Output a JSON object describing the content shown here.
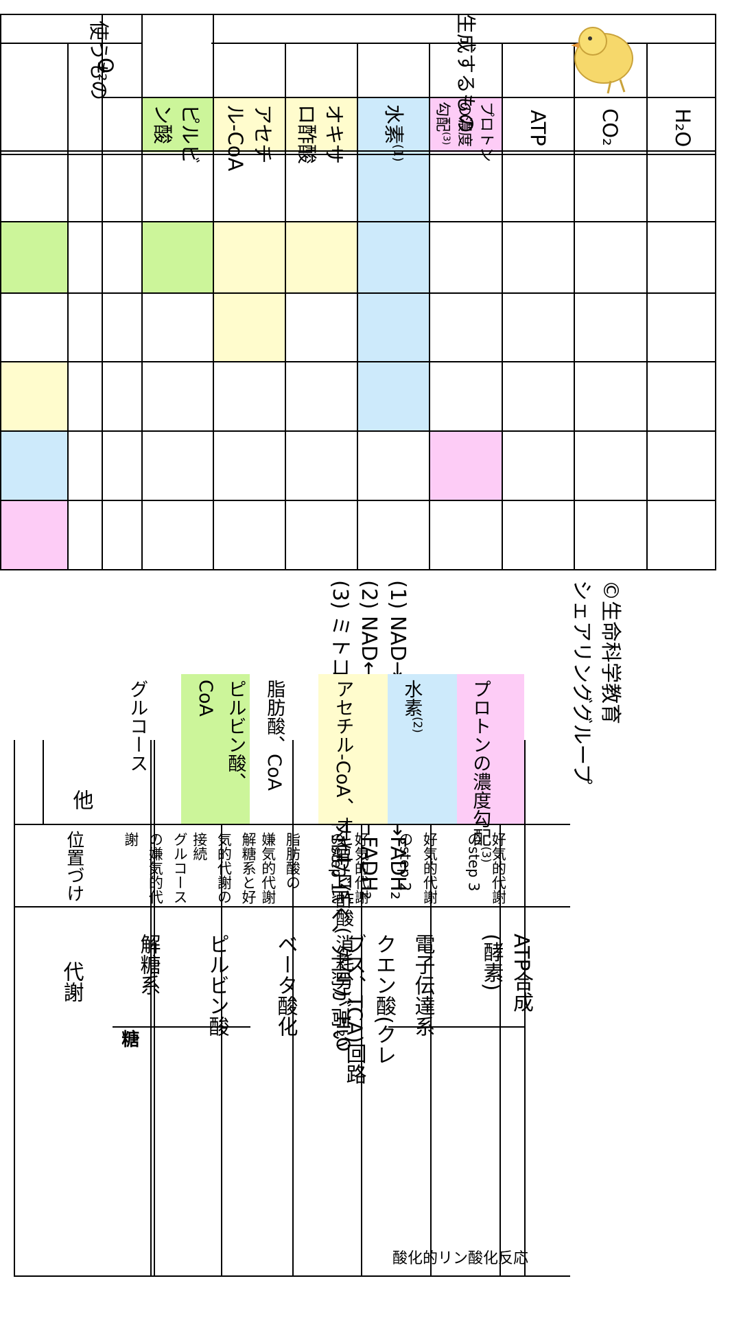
{
  "colors": {
    "green": "#ccf59a",
    "yellow": "#fffccd",
    "blue": "#cdeafb",
    "pink": "#fdccf6"
  },
  "headers": {
    "metabolism": "代謝",
    "positioning": "位置づけ",
    "uses": "使うもの",
    "other": "他",
    "o2": "O₂",
    "produces": "生成するもの",
    "pyruvate": [
      "ピルビ",
      "ン酸"
    ],
    "acetyl_coa": [
      "アセチ",
      "ル-CoA"
    ],
    "oxaloacetate": [
      "オキサ",
      "ロ酢酸"
    ],
    "hydrogen": "水素",
    "hydrogen_mark": "(1)",
    "proton": [
      "プロトン",
      "の濃度",
      "勾配"
    ],
    "proton_mark": "(3)",
    "atp": "ATP",
    "co2": "CO₂",
    "h2o": "H₂O"
  },
  "groups": {
    "sugar": "糖",
    "oxphos": "酸化的リン酸化反応"
  },
  "rows": [
    {
      "name": "解糖系",
      "position": [
        "グルコース",
        "の嫌気的代",
        "謝"
      ],
      "other": [
        "グルコース"
      ]
    },
    {
      "name": "ピルビン酸",
      "position": [
        "解糖系と好",
        "気的代謝の",
        "接続"
      ],
      "other": [
        "ピルビン酸、",
        "CoA"
      ]
    },
    {
      "name": "ベータ酸化",
      "position": [
        "脂肪酸の",
        "嫌気的代謝"
      ],
      "other": [
        "脂肪酸、CoA"
      ]
    },
    {
      "name_lines": [
        "クエン酸(クレ",
        "ブス、TCA)回路"
      ],
      "position": [
        "好気的代謝",
        "のstep 1"
      ],
      "other_lines": [
        "アセチル-CoA、",
        "オキサロ酢酸",
        "(消耗分)",
        "、",
        "H₂O"
      ]
    },
    {
      "name": "電子伝達系",
      "position": [
        "好気的代謝",
        "のstep 2"
      ],
      "other": [
        "水素"
      ],
      "other_mark": "(2)"
    },
    {
      "name_lines": [
        "ATP合成",
        "(酵素)"
      ],
      "position": [
        "好気的代謝",
        "のstep 3"
      ],
      "other_lines": [
        "プロトンの",
        "濃度勾配"
      ],
      "other_mark": "(3)"
    }
  ],
  "notes": [
    {
      "num": "(1)",
      "text": "NAD→NADH₂⁺、FAD→FADH₂"
    },
    {
      "num": "(2)",
      "text": "NAD←NADH₂⁺、FAD←FADH₂"
    },
    {
      "num": "(3)",
      "text": "ミトコンドリア内膜の内側が低く、外側が高い"
    }
  ],
  "copyright": [
    "©生命科学教育",
    "シェアリンググループ"
  ],
  "mascot_icon": "chick-icon"
}
